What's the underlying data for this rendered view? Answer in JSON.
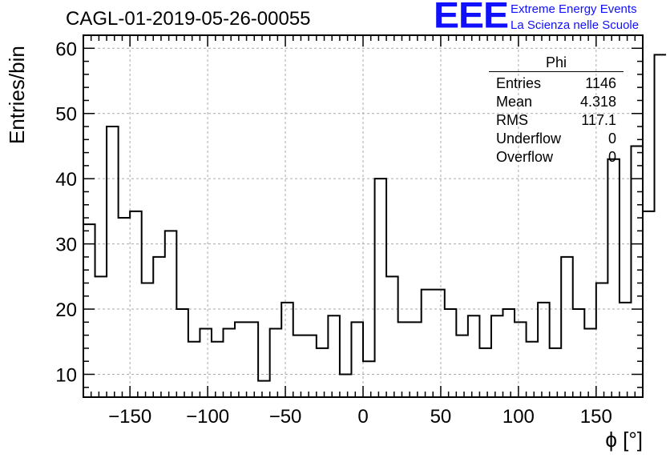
{
  "title": "CAGL-01-2019-05-26-00055",
  "logo": {
    "mark": "EEE",
    "line1": "Extreme Energy Events",
    "line2": "La Scienza nelle Scuole",
    "color": "#1010ff"
  },
  "stats": {
    "name": "Phi",
    "rows": [
      {
        "label": "Entries",
        "value": "1146"
      },
      {
        "label": "Mean",
        "value": "4.318"
      },
      {
        "label": "RMS",
        "value": "117.1"
      },
      {
        "label": "Underflow",
        "value": "0"
      },
      {
        "label": "Overflow",
        "value": "0"
      }
    ]
  },
  "chart_data": {
    "type": "bar",
    "histogram": true,
    "xlabel": "ϕ [°]",
    "ylabel": "Entries/bin",
    "xlim": [
      -180,
      180
    ],
    "ylim": [
      6.5,
      62
    ],
    "xticks": [
      -150,
      -100,
      -50,
      0,
      50,
      100,
      150
    ],
    "yticks": [
      10,
      20,
      30,
      40,
      50,
      60
    ],
    "grid": true,
    "bin_width": 7.5,
    "bin_edges_start": -180,
    "values": [
      33,
      25,
      48,
      34,
      35,
      24,
      28,
      32,
      20,
      15,
      17,
      15,
      17,
      18,
      18,
      9,
      17,
      21,
      16,
      16,
      14,
      19,
      10,
      18,
      12,
      40,
      25,
      18,
      18,
      23,
      23,
      20,
      16,
      19,
      14,
      19,
      20,
      18,
      15,
      21,
      14,
      28,
      20,
      17,
      24,
      43,
      21,
      45,
      35,
      59
    ],
    "line_color": "#000000",
    "grid_color": "#aaaaaa"
  }
}
